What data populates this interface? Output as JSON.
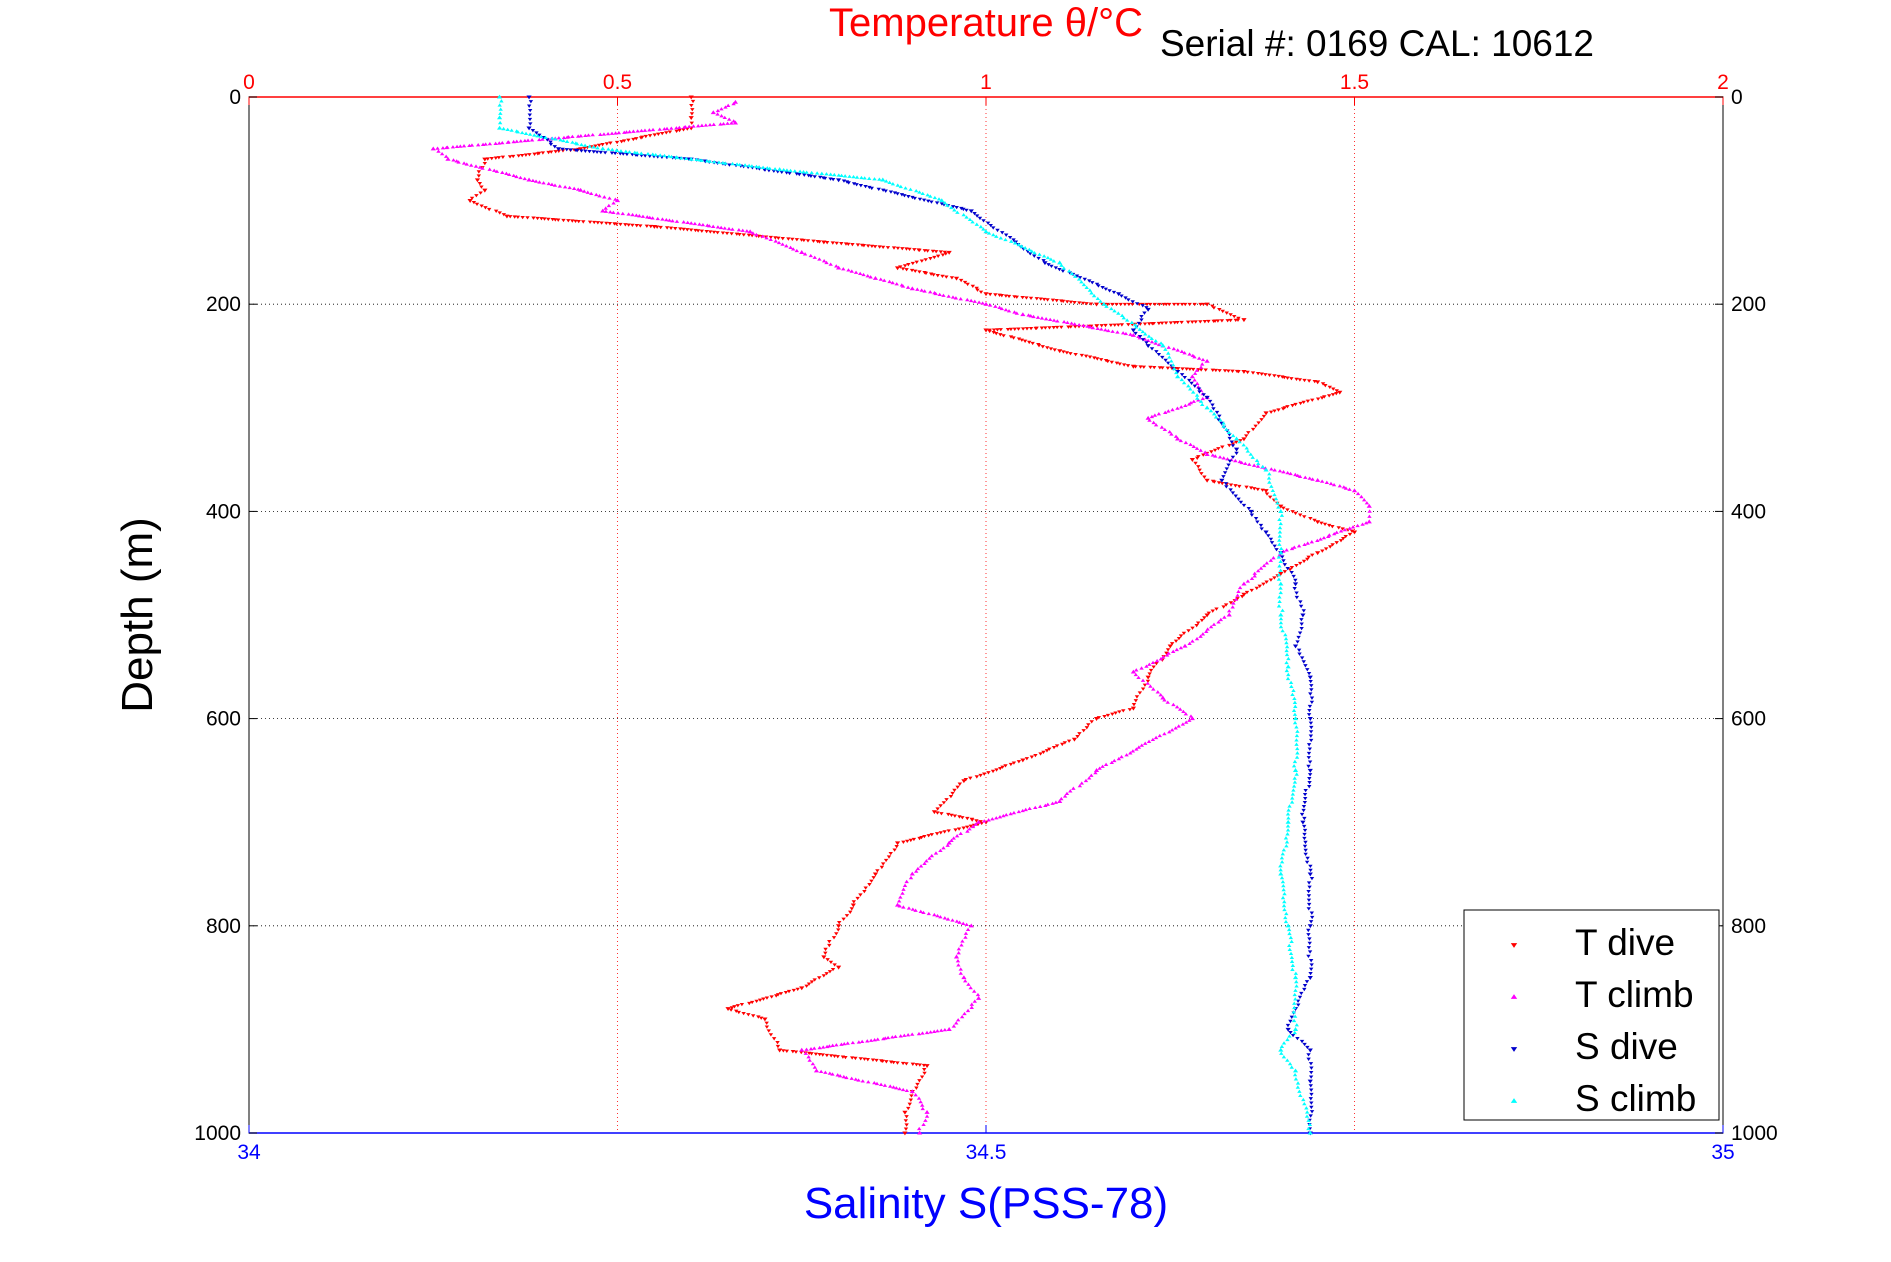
{
  "chart_data": {
    "type": "scatter",
    "title": "Temperature θ/°C",
    "subtitle": "Serial #: 0169 CAL: 10612",
    "ylabel": "Depth (m)",
    "x2label": "Salinity S(PSS-78)",
    "ylim": [
      1000,
      0
    ],
    "y_direction": "down",
    "temperature_axis": {
      "range": [
        0,
        2
      ],
      "ticks": [
        "0",
        "0.5",
        "1",
        "1.5",
        "2"
      ],
      "position": "top",
      "color": "#ff0000"
    },
    "salinity_axis": {
      "range": [
        34,
        35
      ],
      "ticks": [
        "34",
        "34.5",
        "35"
      ],
      "position": "bottom",
      "color": "#0000ff"
    },
    "depth_ticks": [
      "0",
      "200",
      "400",
      "600",
      "800",
      "1000"
    ],
    "grid": true,
    "legend_position": "bottom-right",
    "series": [
      {
        "name": "T dive",
        "axis": "temperature",
        "color": "#ff0000",
        "marker": "triangle-down",
        "points": [
          [
            0.6,
            0
          ],
          [
            0.6,
            20
          ],
          [
            0.6,
            30
          ],
          [
            0.45,
            50
          ],
          [
            0.32,
            60
          ],
          [
            0.31,
            80
          ],
          [
            0.32,
            90
          ],
          [
            0.3,
            100
          ],
          [
            0.35,
            115
          ],
          [
            0.55,
            125
          ],
          [
            0.78,
            140
          ],
          [
            0.95,
            150
          ],
          [
            0.88,
            165
          ],
          [
            0.96,
            175
          ],
          [
            1.0,
            190
          ],
          [
            1.15,
            200
          ],
          [
            1.3,
            200
          ],
          [
            1.35,
            215
          ],
          [
            1.0,
            225
          ],
          [
            1.1,
            245
          ],
          [
            1.2,
            260
          ],
          [
            1.35,
            265
          ],
          [
            1.45,
            275
          ],
          [
            1.48,
            285
          ],
          [
            1.38,
            305
          ],
          [
            1.35,
            330
          ],
          [
            1.28,
            350
          ],
          [
            1.3,
            370
          ],
          [
            1.38,
            380
          ],
          [
            1.4,
            395
          ],
          [
            1.45,
            410
          ],
          [
            1.5,
            420
          ],
          [
            1.45,
            440
          ],
          [
            1.4,
            460
          ],
          [
            1.35,
            480
          ],
          [
            1.3,
            500
          ],
          [
            1.25,
            530
          ],
          [
            1.22,
            560
          ],
          [
            1.2,
            590
          ],
          [
            1.15,
            600
          ],
          [
            1.12,
            620
          ],
          [
            1.05,
            640
          ],
          [
            0.97,
            660
          ],
          [
            0.93,
            690
          ],
          [
            1.0,
            700
          ],
          [
            0.88,
            720
          ],
          [
            0.85,
            750
          ],
          [
            0.82,
            780
          ],
          [
            0.8,
            800
          ],
          [
            0.78,
            830
          ],
          [
            0.8,
            840
          ],
          [
            0.75,
            860
          ],
          [
            0.65,
            880
          ],
          [
            0.7,
            890
          ],
          [
            0.72,
            920
          ],
          [
            0.92,
            935
          ],
          [
            0.9,
            960
          ],
          [
            0.89,
            980
          ],
          [
            0.89,
            1000
          ]
        ]
      },
      {
        "name": "T climb",
        "axis": "temperature",
        "color": "#ff00ff",
        "marker": "triangle-up",
        "points": [
          [
            0.66,
            5
          ],
          [
            0.63,
            15
          ],
          [
            0.66,
            25
          ],
          [
            0.25,
            50
          ],
          [
            0.27,
            60
          ],
          [
            0.38,
            80
          ],
          [
            0.45,
            90
          ],
          [
            0.5,
            100
          ],
          [
            0.48,
            110
          ],
          [
            0.68,
            130
          ],
          [
            0.75,
            150
          ],
          [
            0.8,
            165
          ],
          [
            0.85,
            175
          ],
          [
            0.9,
            185
          ],
          [
            1.0,
            200
          ],
          [
            1.05,
            210
          ],
          [
            1.2,
            230
          ],
          [
            1.3,
            255
          ],
          [
            1.28,
            270
          ],
          [
            1.3,
            290
          ],
          [
            1.22,
            310
          ],
          [
            1.26,
            330
          ],
          [
            1.3,
            345
          ],
          [
            1.45,
            370
          ],
          [
            1.5,
            380
          ],
          [
            1.52,
            395
          ],
          [
            1.52,
            410
          ],
          [
            1.4,
            440
          ],
          [
            1.35,
            470
          ],
          [
            1.33,
            500
          ],
          [
            1.27,
            530
          ],
          [
            1.2,
            555
          ],
          [
            1.24,
            580
          ],
          [
            1.28,
            600
          ],
          [
            1.15,
            650
          ],
          [
            1.1,
            680
          ],
          [
            0.99,
            700
          ],
          [
            0.95,
            720
          ],
          [
            0.9,
            750
          ],
          [
            0.88,
            780
          ],
          [
            0.98,
            800
          ],
          [
            0.96,
            830
          ],
          [
            0.97,
            850
          ],
          [
            0.99,
            870
          ],
          [
            0.95,
            900
          ],
          [
            0.75,
            920
          ],
          [
            0.77,
            940
          ],
          [
            0.9,
            960
          ],
          [
            0.92,
            980
          ],
          [
            0.91,
            1000
          ]
        ]
      },
      {
        "name": "S dive",
        "axis": "salinity",
        "color": "#0000cc",
        "marker": "triangle-down",
        "points": [
          [
            34.19,
            0
          ],
          [
            34.19,
            30
          ],
          [
            34.21,
            50
          ],
          [
            34.3,
            60
          ],
          [
            34.4,
            80
          ],
          [
            34.49,
            110
          ],
          [
            34.52,
            140
          ],
          [
            34.54,
            160
          ],
          [
            34.59,
            190
          ],
          [
            34.61,
            205
          ],
          [
            34.6,
            225
          ],
          [
            34.61,
            240
          ],
          [
            34.63,
            265
          ],
          [
            34.65,
            290
          ],
          [
            34.66,
            315
          ],
          [
            34.67,
            340
          ],
          [
            34.66,
            370
          ],
          [
            34.68,
            400
          ],
          [
            34.69,
            420
          ],
          [
            34.7,
            440
          ],
          [
            34.71,
            470
          ],
          [
            34.715,
            500
          ],
          [
            34.71,
            530
          ],
          [
            34.72,
            560
          ],
          [
            34.72,
            600
          ],
          [
            34.72,
            650
          ],
          [
            34.715,
            700
          ],
          [
            34.72,
            750
          ],
          [
            34.72,
            800
          ],
          [
            34.72,
            850
          ],
          [
            34.71,
            880
          ],
          [
            34.705,
            900
          ],
          [
            34.72,
            920
          ],
          [
            34.72,
            950
          ],
          [
            34.72,
            1000
          ]
        ]
      },
      {
        "name": "S climb",
        "axis": "salinity",
        "color": "#00ffff",
        "marker": "triangle-up",
        "points": [
          [
            34.17,
            0
          ],
          [
            34.17,
            20
          ],
          [
            34.17,
            30
          ],
          [
            34.24,
            50
          ],
          [
            34.3,
            60
          ],
          [
            34.36,
            70
          ],
          [
            34.43,
            80
          ],
          [
            34.47,
            100
          ],
          [
            34.5,
            130
          ],
          [
            34.55,
            160
          ],
          [
            34.58,
            200
          ],
          [
            34.62,
            240
          ],
          [
            34.63,
            270
          ],
          [
            34.65,
            300
          ],
          [
            34.67,
            330
          ],
          [
            34.69,
            360
          ],
          [
            34.7,
            400
          ],
          [
            34.7,
            440
          ],
          [
            34.7,
            470
          ],
          [
            34.7,
            500
          ],
          [
            34.705,
            550
          ],
          [
            34.71,
            600
          ],
          [
            34.71,
            650
          ],
          [
            34.705,
            700
          ],
          [
            34.7,
            750
          ],
          [
            34.705,
            800
          ],
          [
            34.71,
            850
          ],
          [
            34.71,
            900
          ],
          [
            34.7,
            920
          ],
          [
            34.71,
            940
          ],
          [
            34.72,
            1000
          ]
        ]
      }
    ]
  }
}
